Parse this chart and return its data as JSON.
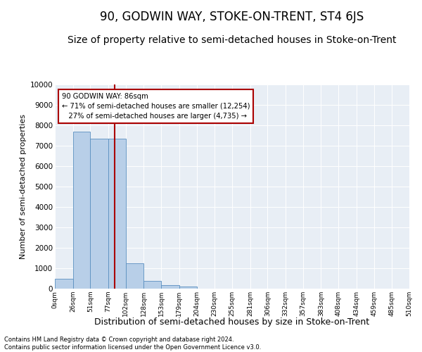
{
  "title": "90, GODWIN WAY, STOKE-ON-TRENT, ST4 6JS",
  "subtitle": "Size of property relative to semi-detached houses in Stoke-on-Trent",
  "xlabel": "Distribution of semi-detached houses by size in Stoke-on-Trent",
  "ylabel": "Number of semi-detached properties",
  "footer_line1": "Contains HM Land Registry data © Crown copyright and database right 2024.",
  "footer_line2": "Contains public sector information licensed under the Open Government Licence v3.0.",
  "bin_labels": [
    "0sqm",
    "26sqm",
    "51sqm",
    "77sqm",
    "102sqm",
    "128sqm",
    "153sqm",
    "179sqm",
    "204sqm",
    "230sqm",
    "255sqm",
    "281sqm",
    "306sqm",
    "332sqm",
    "357sqm",
    "383sqm",
    "408sqm",
    "434sqm",
    "459sqm",
    "485sqm",
    "510sqm"
  ],
  "bin_edges": [
    0,
    26,
    51,
    77,
    102,
    128,
    153,
    179,
    204,
    230,
    255,
    281,
    306,
    332,
    357,
    383,
    408,
    434,
    459,
    485,
    510
  ],
  "bar_values": [
    500,
    7700,
    7350,
    7350,
    1250,
    380,
    170,
    90,
    0,
    0,
    0,
    0,
    0,
    0,
    0,
    0,
    0,
    0,
    0,
    0
  ],
  "bar_color": "#b8cfe8",
  "bar_edge_color": "#5a8fc0",
  "property_size": 86,
  "property_label": "90 GODWIN WAY: 86sqm",
  "pct_smaller": 71,
  "pct_smaller_n": "12,254",
  "pct_larger": 27,
  "pct_larger_n": "4,735",
  "vline_color": "#aa0000",
  "annotation_box_color": "#aa0000",
  "ylim": [
    0,
    10000
  ],
  "yticks": [
    0,
    1000,
    2000,
    3000,
    4000,
    5000,
    6000,
    7000,
    8000,
    9000,
    10000
  ],
  "bg_color": "#e8eef5",
  "title_fontsize": 12,
  "subtitle_fontsize": 10
}
